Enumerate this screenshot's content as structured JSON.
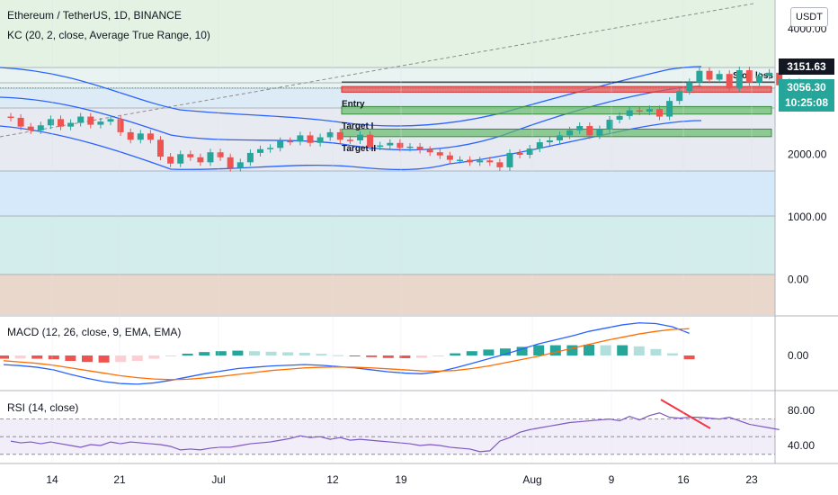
{
  "legend": {
    "title": "Ethereum / TetherUS, 1D, BINANCE",
    "kc": "KC (20, 2, close, Average True Range, 10)",
    "macd": "MACD (12, 26, close, 9, EMA, EMA)",
    "rsi": "RSI (14, close)"
  },
  "currency": "USDT",
  "price_badge": {
    "price": "3056.30",
    "countdown": "10:25:08"
  },
  "stoploss_badge": "3151.63",
  "annotations": {
    "stop_loss": "Stop loss",
    "entry": "Entry",
    "target1": "Target I",
    "target2": "Target II"
  },
  "chart_data": {
    "type": "candlestick",
    "x_ticks": [
      "14",
      "21",
      "Jul",
      "12",
      "19",
      "Aug",
      "9",
      "16",
      "23"
    ],
    "price_axis": {
      "ticks": [
        "4000.00",
        "3000.00",
        "2000.00",
        "1000.00",
        "0.00"
      ],
      "ylim": [
        -500,
        4500
      ]
    },
    "macd_axis": {
      "ticks": [
        "0.00"
      ]
    },
    "rsi_axis": {
      "ticks": [
        "80.00",
        "40.00"
      ]
    },
    "levels": {
      "stop_loss": 3151.63,
      "entry": [
        2990,
        3080
      ],
      "target1": [
        2640,
        2760
      ],
      "target2": [
        2280,
        2400
      ]
    },
    "candles": [
      [
        2600,
        2580
      ],
      [
        2580,
        2440
      ],
      [
        2440,
        2380
      ],
      [
        2380,
        2460
      ],
      [
        2460,
        2560
      ],
      [
        2560,
        2440
      ],
      [
        2440,
        2500
      ],
      [
        2500,
        2600
      ],
      [
        2600,
        2470
      ],
      [
        2470,
        2520
      ],
      [
        2520,
        2560
      ],
      [
        2560,
        2350
      ],
      [
        2350,
        2230
      ],
      [
        2230,
        2330
      ],
      [
        2330,
        2230
      ],
      [
        2230,
        1960
      ],
      [
        1960,
        1850
      ],
      [
        1850,
        2000
      ],
      [
        2000,
        1950
      ],
      [
        1950,
        1870
      ],
      [
        1870,
        2030
      ],
      [
        2030,
        1950
      ],
      [
        1950,
        1780
      ],
      [
        1780,
        1870
      ],
      [
        1870,
        2020
      ],
      [
        2020,
        2080
      ],
      [
        2080,
        2100
      ],
      [
        2100,
        2210
      ],
      [
        2210,
        2200
      ],
      [
        2200,
        2300
      ],
      [
        2300,
        2180
      ],
      [
        2180,
        2270
      ],
      [
        2270,
        2350
      ],
      [
        2350,
        2230
      ],
      [
        2230,
        2220
      ],
      [
        2220,
        2310
      ],
      [
        2310,
        2120
      ],
      [
        2120,
        2140
      ],
      [
        2140,
        2180
      ],
      [
        2180,
        2100
      ],
      [
        2100,
        2120
      ],
      [
        2120,
        2070
      ],
      [
        2070,
        2030
      ],
      [
        2030,
        1980
      ],
      [
        1980,
        1910
      ],
      [
        1910,
        1910
      ],
      [
        1910,
        1870
      ],
      [
        1870,
        1900
      ],
      [
        1900,
        1870
      ],
      [
        1870,
        1790
      ],
      [
        1790,
        2020
      ],
      [
        2020,
        1990
      ],
      [
        1990,
        2090
      ],
      [
        2090,
        2190
      ],
      [
        2190,
        2220
      ],
      [
        2220,
        2300
      ],
      [
        2300,
        2380
      ],
      [
        2380,
        2450
      ],
      [
        2450,
        2300
      ],
      [
        2300,
        2400
      ],
      [
        2400,
        2550
      ],
      [
        2550,
        2610
      ],
      [
        2610,
        2700
      ],
      [
        2700,
        2680
      ],
      [
        2680,
        2720
      ],
      [
        2720,
        2600
      ],
      [
        2600,
        2850
      ],
      [
        2850,
        3010
      ],
      [
        3010,
        3150
      ],
      [
        3150,
        3330
      ],
      [
        3330,
        3190
      ],
      [
        3190,
        3280
      ],
      [
        3280,
        3050
      ],
      [
        3050,
        3340
      ],
      [
        3340,
        3150
      ],
      [
        3150,
        3250
      ],
      [
        3250,
        3300
      ],
      [
        3300,
        3100
      ],
      [
        3100,
        3150
      ],
      [
        3150,
        3050
      ]
    ],
    "rsi": [
      45,
      43,
      44,
      42,
      44,
      42,
      40,
      38,
      41,
      40,
      44,
      42,
      44,
      43,
      42,
      41,
      39,
      35,
      36,
      35,
      37,
      38,
      38,
      40,
      42,
      43,
      44,
      46,
      48,
      51,
      49,
      50,
      47,
      49,
      46,
      47,
      46,
      45,
      44,
      43,
      42,
      40,
      41,
      40,
      38,
      37,
      36,
      33,
      34,
      45,
      49,
      55,
      58,
      60,
      62,
      64,
      66,
      67,
      68,
      69,
      70,
      68,
      73,
      69,
      74,
      77,
      72,
      71,
      72,
      72,
      71,
      70,
      72,
      68,
      64,
      62,
      60,
      58
    ],
    "macd": [
      -70,
      -78,
      -90,
      -110,
      -145,
      -175,
      -200,
      -215,
      -220,
      -210,
      -190,
      -165,
      -140,
      -120,
      -100,
      -90,
      -80,
      -75,
      -70,
      -75,
      -85,
      -95,
      -110,
      -125,
      -135,
      -140,
      -125,
      -95,
      -60,
      -25,
      10,
      50,
      90,
      120,
      150,
      185,
      210,
      235,
      250,
      245,
      220,
      170
    ],
    "signal": [
      -40,
      -50,
      -60,
      -75,
      -95,
      -115,
      -135,
      -155,
      -170,
      -180,
      -185,
      -182,
      -172,
      -160,
      -145,
      -130,
      -115,
      -105,
      -95,
      -90,
      -88,
      -90,
      -95,
      -102,
      -110,
      -118,
      -120,
      -115,
      -100,
      -80,
      -55,
      -30,
      -5,
      25,
      55,
      85,
      115,
      140,
      165,
      185,
      200,
      205
    ]
  }
}
